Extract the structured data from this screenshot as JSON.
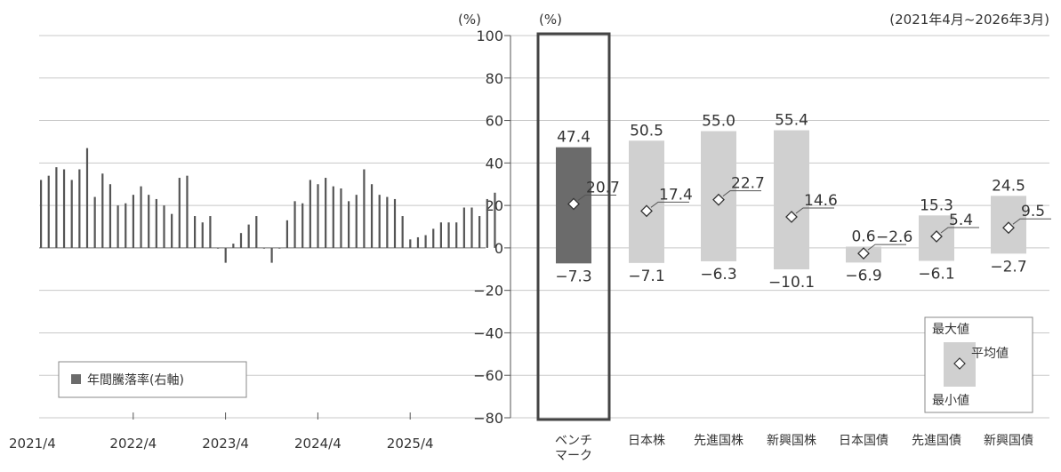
{
  "left_unit": "(%)",
  "right_unit": "(%)",
  "period": "(2021年4月~2026年3月)",
  "legend": {
    "annual_label": "年間騰落率(右軸)"
  },
  "box_legend": {
    "max_label": "最大値",
    "avg_label": "平均値",
    "min_label": "最小値"
  },
  "chart_data": [
    {
      "type": "bar",
      "title": "",
      "series": [
        {
          "name": "年間騰落率(右軸)",
          "values": [
            32,
            34,
            38,
            37,
            32,
            37,
            47,
            24,
            35,
            30,
            20,
            21,
            25,
            29,
            25,
            23,
            20,
            16,
            33,
            34,
            15,
            12,
            15,
            0,
            -7,
            2,
            7,
            11,
            15,
            0,
            -7,
            0,
            13,
            22,
            21,
            32,
            30,
            33,
            29,
            28,
            22,
            25,
            37,
            30,
            25,
            24,
            23,
            15,
            4,
            5,
            6,
            9,
            12,
            12,
            12,
            19,
            19,
            15,
            23,
            26
          ]
        }
      ],
      "xticks": [
        "2021/4",
        "2022/4",
        "2023/4",
        "2024/4",
        "2025/4"
      ],
      "ylim": [
        -80,
        100
      ]
    },
    {
      "type": "bar",
      "title": "",
      "categories": [
        "ベンチマーク",
        "日本株",
        "先進国株",
        "新興国株",
        "日本国債",
        "先進国債",
        "新興国債"
      ],
      "category_lines": [
        [
          "ベンチ",
          "マーク"
        ],
        [
          "日本株"
        ],
        [
          "先進国株"
        ],
        [
          "新興国株"
        ],
        [
          "日本国債"
        ],
        [
          "先進国債"
        ],
        [
          "新興国債"
        ]
      ],
      "series": [
        {
          "name": "最大値",
          "values": [
            47.4,
            50.5,
            55.0,
            55.4,
            0.6,
            15.3,
            24.5
          ]
        },
        {
          "name": "平均値",
          "values": [
            20.7,
            17.4,
            22.7,
            14.6,
            -2.6,
            5.4,
            9.5
          ]
        },
        {
          "name": "最小値",
          "values": [
            -7.3,
            -7.1,
            -6.3,
            -10.1,
            -6.9,
            -6.1,
            -2.7
          ]
        }
      ],
      "max_labels": [
        "47.4",
        "50.5",
        "55.0",
        "55.4",
        "0.6",
        "15.3",
        "24.5"
      ],
      "avg_labels": [
        "20.7",
        "17.4",
        "22.7",
        "14.6",
        "−2.6",
        "5.4",
        "9.5"
      ],
      "min_labels": [
        "−7.3",
        "−7.1",
        "−6.3",
        "−10.1",
        "−6.9",
        "−6.1",
        "−2.7"
      ],
      "yticks": [
        "100",
        "80",
        "60",
        "40",
        "20",
        "0",
        "−20",
        "−40",
        "−60",
        "−80"
      ],
      "ylim": [
        -80,
        100
      ],
      "grid": true,
      "colors": {
        "benchmark": "#6b6b6b",
        "asset": "#d0d0d0",
        "grid": "#c8c8c8",
        "axis": "#555555",
        "marker_fill": "#ffffff"
      }
    }
  ]
}
